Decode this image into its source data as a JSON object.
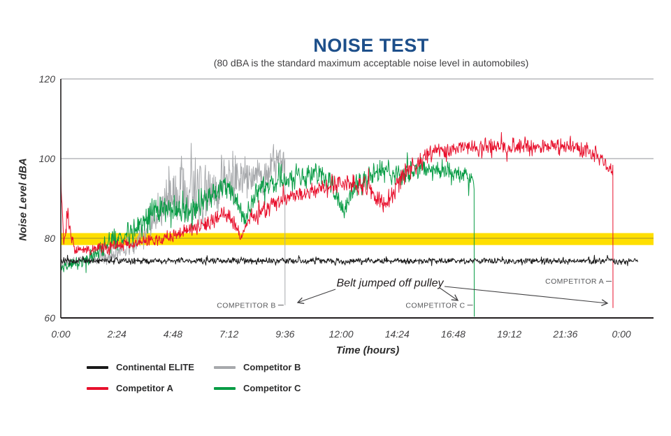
{
  "chart_data": {
    "type": "line",
    "title": "NOISE TEST",
    "subtitle": "(80 dBA is the standard maximum acceptable noise level in automobiles)",
    "xlabel": "Time (hours)",
    "ylabel": "Noise Level dBA",
    "ylim": [
      60,
      120
    ],
    "yticks": [
      60,
      80,
      100,
      120
    ],
    "gridlines_dba": [
      100,
      120
    ],
    "grid_color": "#939598",
    "axis_color": "#231f20",
    "xtick_labels": [
      "0:00",
      "2:24",
      "4:48",
      "7:12",
      "9:36",
      "12:00",
      "14:24",
      "16:48",
      "19:12",
      "21:36",
      "0:00"
    ],
    "xtick_hours": [
      0,
      2.4,
      4.8,
      7.2,
      9.6,
      12,
      14.4,
      16.8,
      19.2,
      21.6,
      24
    ],
    "x_plot_end_hours": 25.4,
    "threshold_band": {
      "center_dba": 80,
      "from_dba": 78.3,
      "to_dba": 81.3,
      "color": "#ffdf00",
      "centerline_color": "#b3a125"
    },
    "series": [
      {
        "name": "Competitor B",
        "color": "#a7a9ac",
        "start_hour": 0,
        "end_hour": 9.6,
        "drop_hour": 9.6,
        "drop_to_dba": 63.2,
        "trend": [
          [
            0,
            74,
            1.5
          ],
          [
            1.2,
            74.5,
            2
          ],
          [
            2.2,
            76,
            3
          ],
          [
            3.2,
            79,
            4
          ],
          [
            4.0,
            85,
            7
          ],
          [
            4.6,
            90,
            11
          ],
          [
            5.2,
            92,
            13
          ],
          [
            6.0,
            91,
            12
          ],
          [
            6.8,
            93,
            11
          ],
          [
            7.6,
            95,
            9
          ],
          [
            8.4,
            96,
            8
          ],
          [
            9.2,
            98,
            7
          ],
          [
            9.6,
            99,
            6
          ]
        ]
      },
      {
        "name": "Competitor C",
        "color": "#089c45",
        "start_hour": 0,
        "end_hour": 17.7,
        "drop_hour": 17.7,
        "drop_to_dba": 60.3,
        "trend": [
          [
            0,
            72.5,
            1.5
          ],
          [
            0.8,
            74,
            2.5
          ],
          [
            1.6,
            77,
            3.5
          ],
          [
            2.4,
            80,
            4.5
          ],
          [
            3.2,
            83,
            5
          ],
          [
            4.0,
            86,
            5.5
          ],
          [
            4.8,
            88,
            6
          ],
          [
            5.6,
            87,
            5
          ],
          [
            6.4,
            91,
            5
          ],
          [
            7.2,
            93,
            4.5
          ],
          [
            7.9,
            85,
            4
          ],
          [
            8.4,
            92,
            4.5
          ],
          [
            9.6,
            95,
            4
          ],
          [
            10.8,
            96,
            4
          ],
          [
            11.6,
            93,
            4.5
          ],
          [
            12.1,
            87,
            3.5
          ],
          [
            12.6,
            93,
            4
          ],
          [
            13.6,
            97,
            4
          ],
          [
            14.6,
            96,
            4
          ],
          [
            15.6,
            98,
            3.5
          ],
          [
            16.6,
            97,
            3.5
          ],
          [
            17.3,
            96,
            3.5
          ],
          [
            17.7,
            94,
            3
          ]
        ]
      },
      {
        "name": "Competitor A",
        "color": "#e8112d",
        "start_hour": 0,
        "end_hour": 23.64,
        "drop_hour": 23.64,
        "drop_to_dba": 62.5,
        "trend": [
          [
            0,
            95,
            2
          ],
          [
            0.12,
            79,
            2
          ],
          [
            0.3,
            86,
            6
          ],
          [
            0.6,
            77,
            2
          ],
          [
            1.5,
            77.5,
            2
          ],
          [
            3.0,
            78.5,
            2.2
          ],
          [
            4.8,
            80.5,
            2.5
          ],
          [
            6.0,
            83,
            2.8
          ],
          [
            7.2,
            86.5,
            3
          ],
          [
            7.75,
            80,
            2
          ],
          [
            8.1,
            85,
            3
          ],
          [
            9.0,
            88,
            3
          ],
          [
            9.6,
            90,
            3
          ],
          [
            10.8,
            92,
            3.5
          ],
          [
            12.0,
            94,
            3.5
          ],
          [
            13.0,
            93,
            4
          ],
          [
            13.9,
            88,
            4
          ],
          [
            14.4,
            94,
            4
          ],
          [
            15.2,
            99,
            3.5
          ],
          [
            16.0,
            102,
            3
          ],
          [
            18.0,
            103,
            3
          ],
          [
            20.0,
            103,
            3.2
          ],
          [
            22.0,
            103,
            3
          ],
          [
            23.0,
            101,
            3
          ],
          [
            23.4,
            98,
            2.5
          ],
          [
            23.64,
            97,
            2
          ]
        ]
      },
      {
        "name": "Continental ELITE",
        "color": "#1a1a1a",
        "start_hour": 0,
        "end_hour": 24.7,
        "drop_hour": null,
        "drop_to_dba": null,
        "trend": [
          [
            0,
            74.3,
            1.1
          ],
          [
            24.7,
            74.3,
            1.1
          ]
        ]
      }
    ],
    "annotations": {
      "note": "Belt jumped off pulley",
      "events": [
        {
          "label": "COMPETITOR B",
          "hour": 9.6,
          "label_dba": 63.2
        },
        {
          "label": "COMPETITOR C",
          "hour": 17.7,
          "label_dba": 63.2
        },
        {
          "label": "COMPETITOR A",
          "hour": 23.64,
          "label_dba": 69.2
        }
      ]
    }
  },
  "legend": {
    "items": [
      {
        "label": "Continental ELITE",
        "color": "#1a1a1a"
      },
      {
        "label": "Competitor B",
        "color": "#a7a9ac"
      },
      {
        "label": "Competitor A",
        "color": "#e8112d"
      },
      {
        "label": "Competitor C",
        "color": "#089c45"
      }
    ]
  }
}
